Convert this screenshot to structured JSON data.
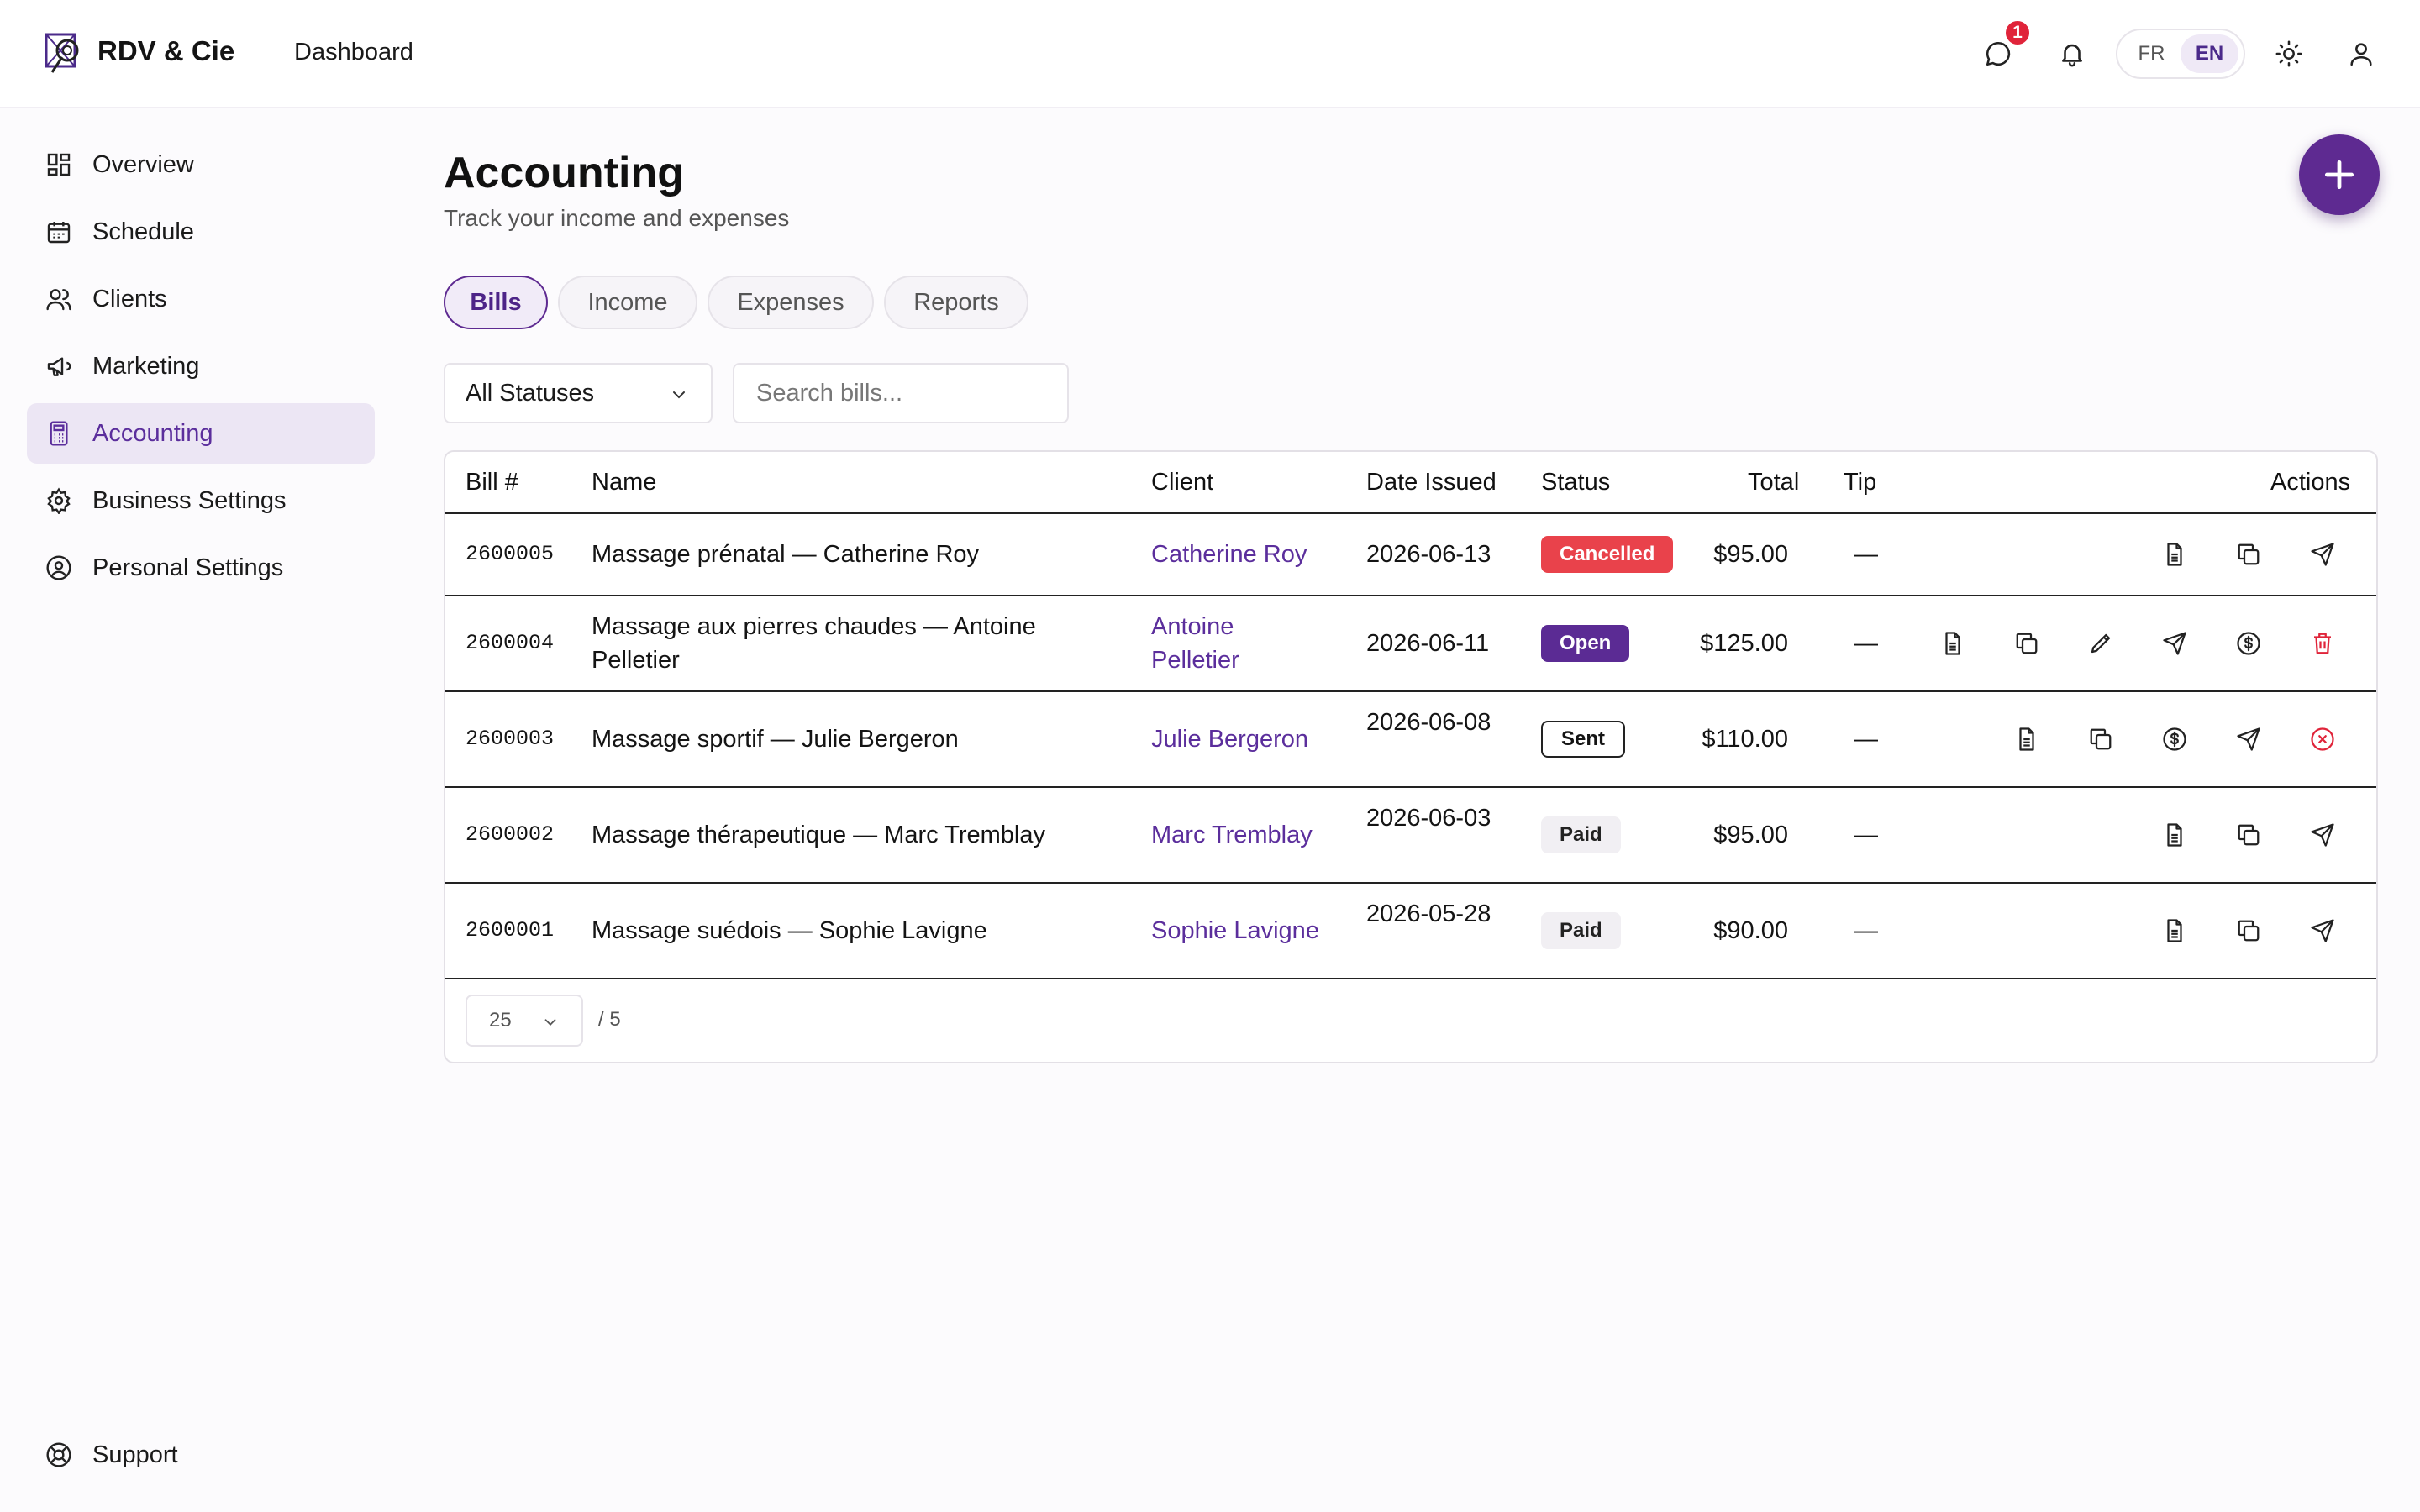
{
  "header": {
    "brand": "RDV & Cie",
    "page": "Dashboard",
    "notification_count": "1",
    "languages": [
      "FR",
      "EN"
    ],
    "active_language": "EN"
  },
  "sidebar": {
    "items": [
      {
        "label": "Overview",
        "icon": "grid-icon"
      },
      {
        "label": "Schedule",
        "icon": "calendar-icon"
      },
      {
        "label": "Clients",
        "icon": "users-icon"
      },
      {
        "label": "Marketing",
        "icon": "megaphone-icon"
      },
      {
        "label": "Accounting",
        "icon": "calculator-icon",
        "active": true
      },
      {
        "label": "Business Settings",
        "icon": "gear-icon"
      },
      {
        "label": "Personal Settings",
        "icon": "user-circle-icon"
      }
    ],
    "support": "Support"
  },
  "main": {
    "title": "Accounting",
    "subtitle": "Track your income and expenses",
    "tabs": [
      "Bills",
      "Income",
      "Expenses",
      "Reports"
    ],
    "active_tab": "Bills",
    "status_filter": "All Statuses",
    "search_placeholder": "Search bills..."
  },
  "table": {
    "columns": {
      "bill": "Bill #",
      "name": "Name",
      "client": "Client",
      "date": "Date Issued",
      "status": "Status",
      "total": "Total",
      "tip": "Tip",
      "actions": "Actions"
    },
    "rows": [
      {
        "bill": "2600005",
        "name": "Massage prénatal — Catherine Roy",
        "client": "Catherine Roy",
        "date": "2026-06-13",
        "status": "Cancelled",
        "total": "$95.00",
        "tip": "—"
      },
      {
        "bill": "2600004",
        "name": "Massage aux pierres chaudes — Antoine Pelletier",
        "client": "Antoine Pelletier",
        "date": "2026-06-11",
        "status": "Open",
        "total": "$125.00",
        "tip": "—"
      },
      {
        "bill": "2600003",
        "name": "Massage sportif — Julie Bergeron",
        "client": "Julie Bergeron",
        "date": "2026-06-08",
        "status": "Sent",
        "total": "$110.00",
        "tip": "—"
      },
      {
        "bill": "2600002",
        "name": "Massage thérapeutique — Marc Tremblay",
        "client": "Marc Tremblay",
        "date": "2026-06-03",
        "status": "Paid",
        "total": "$95.00",
        "tip": "—"
      },
      {
        "bill": "2600001",
        "name": "Massage suédois — Sophie Lavigne",
        "client": "Sophie Lavigne",
        "date": "2026-05-28",
        "status": "Paid",
        "total": "$90.00",
        "tip": "—"
      }
    ]
  },
  "pagination": {
    "page_size": "25",
    "total_label": "/ 5"
  },
  "colors": {
    "accent": "#5e2a91",
    "cancelled": "#e9424b",
    "delete": "#e0243a"
  }
}
